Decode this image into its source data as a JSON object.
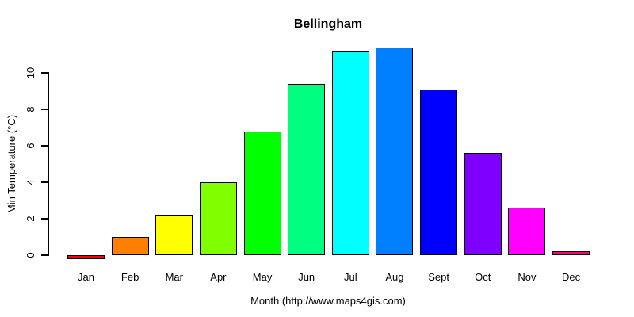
{
  "chart_data": {
    "type": "bar",
    "title": "Bellingham",
    "xlabel": "Month (http://www.maps4gis.com)",
    "ylabel": "Min Temperature (°C)",
    "categories": [
      "Jan",
      "Feb",
      "Mar",
      "Apr",
      "May",
      "Jun",
      "Jul",
      "Aug",
      "Sept",
      "Oct",
      "Nov",
      "Dec"
    ],
    "values": [
      -0.2,
      1.0,
      2.2,
      4.0,
      6.8,
      9.4,
      11.2,
      11.4,
      9.1,
      5.6,
      2.6,
      0.2
    ],
    "bar_colors": [
      "#FF0000",
      "#FF8000",
      "#FFFF00",
      "#80FF00",
      "#00FF00",
      "#00FF80",
      "#00FFFF",
      "#0080FF",
      "#0000FF",
      "#8000FF",
      "#FF00FF",
      "#FF0080"
    ],
    "bar_border_color": "#000000",
    "yticks": [
      0,
      2,
      4,
      6,
      8,
      10
    ],
    "ylim": [
      -0.5,
      11.9
    ],
    "grid": false,
    "legend": false,
    "background": "#FFFFFF",
    "axis_color": "#000000",
    "text_color": "#000000"
  }
}
